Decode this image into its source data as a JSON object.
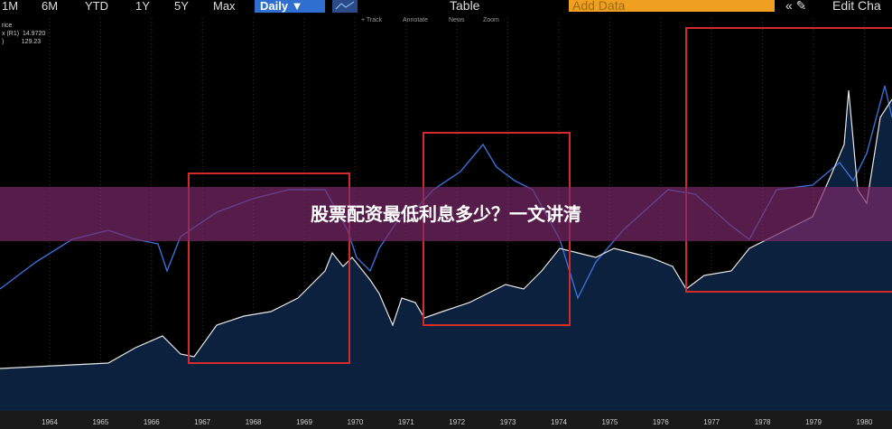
{
  "toolbar": {
    "ranges": [
      "1M",
      "6M",
      "YTD",
      "1Y",
      "5Y",
      "Max"
    ],
    "frequency": "Daily ▼",
    "table": "Table",
    "add_data": "Add Data",
    "edit": "Edit Cha"
  },
  "subtools": [
    "+ Track",
    "Annotate",
    "News",
    "Zoom"
  ],
  "legend": [
    "rice",
    "x (R1)  14.9720",
    ")          129.23"
  ],
  "banner": "股票配资最低利息多少？一文讲清",
  "x_axis": [
    "1964",
    "1965",
    "1966",
    "1967",
    "1968",
    "1969",
    "1970",
    "1971",
    "1972",
    "1973",
    "1974",
    "1975",
    "1976",
    "1977",
    "1978",
    "1979",
    "1980"
  ]
}
